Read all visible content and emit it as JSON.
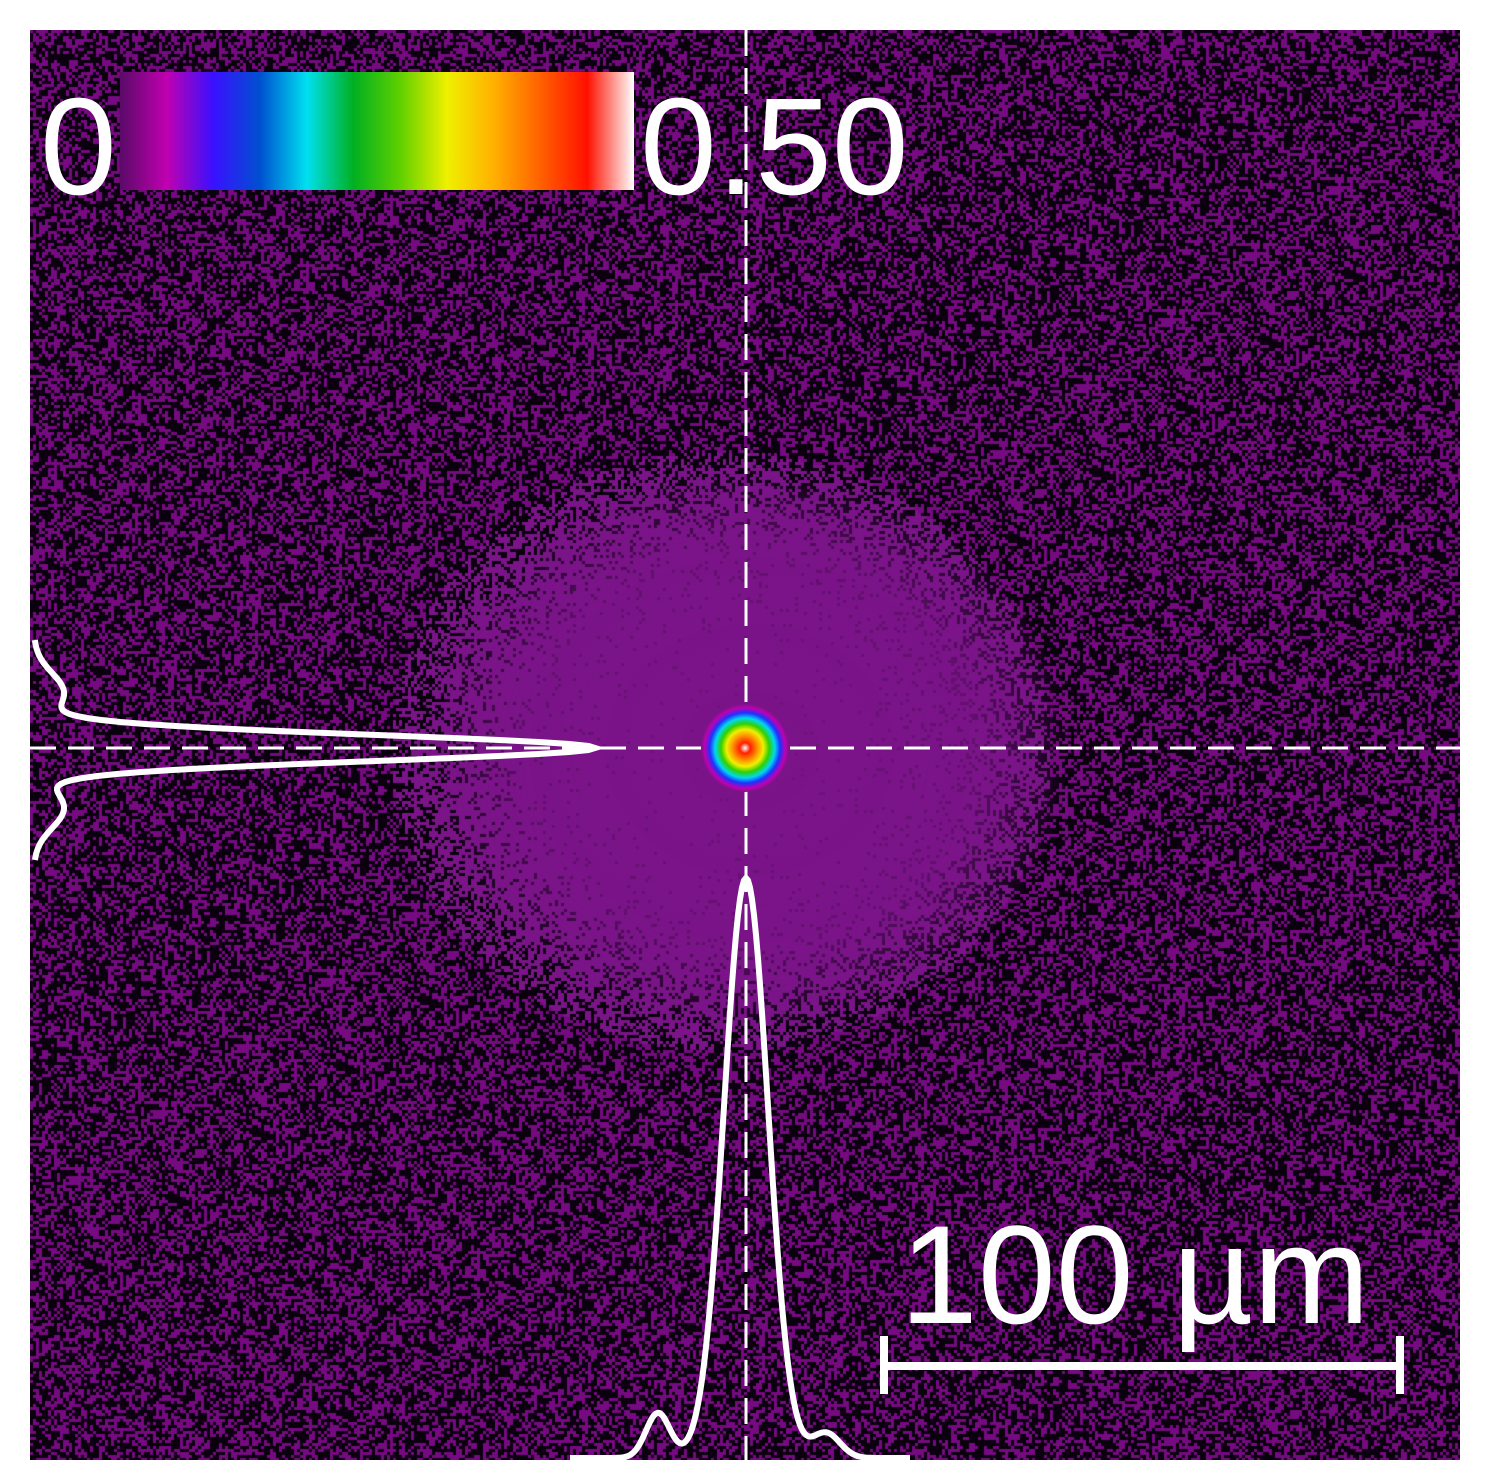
{
  "colorbar": {
    "min_label": "0",
    "max_label": "0.50",
    "stops": [
      "#5a0a68",
      "#c000b0",
      "#3a10ff",
      "#0050d0",
      "#00e0f0",
      "#00b020",
      "#60d000",
      "#f0f000",
      "#ffb000",
      "#ff6000",
      "#ff1000",
      "#ffffff"
    ]
  },
  "scale_bar": {
    "label": "100 µm"
  },
  "colors": {
    "background": "#5a0a68",
    "halo": "#7a1488",
    "profile_line": "#ffffff",
    "crosshair": "#ffffff"
  }
}
